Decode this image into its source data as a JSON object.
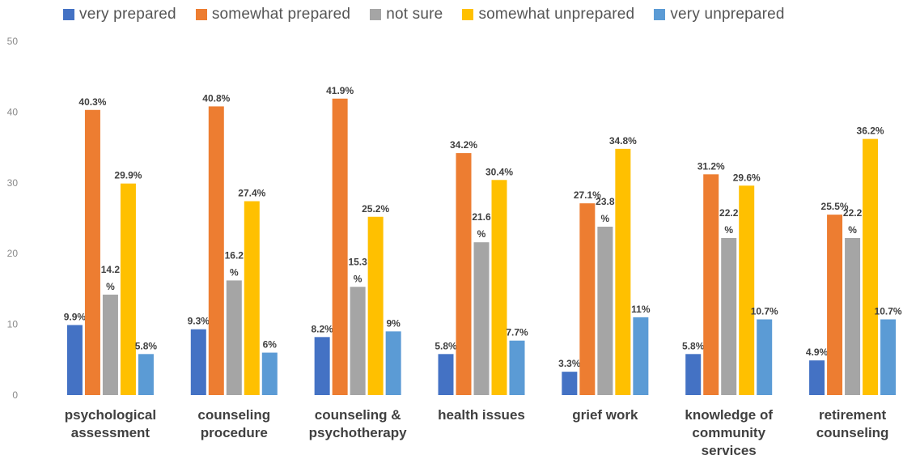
{
  "chart_data": {
    "type": "bar",
    "title": "",
    "xlabel": "",
    "ylabel": "",
    "ylim": [
      0,
      50
    ],
    "yticks": [
      "0",
      "10",
      "20",
      "30",
      "40",
      "50"
    ],
    "grid": false,
    "legend_position": "top",
    "categories": [
      [
        "psychological",
        "assessment"
      ],
      [
        "counseling",
        "procedure"
      ],
      [
        "counseling &",
        "psychotherapy"
      ],
      [
        "health issues"
      ],
      [
        "grief work"
      ],
      [
        "knowledge of",
        "community",
        "services"
      ],
      [
        "retirement",
        "counseling"
      ]
    ],
    "series": [
      {
        "name": "very prepared",
        "color": "#4472C4",
        "values": [
          9.9,
          9.3,
          8.2,
          5.8,
          3.3,
          5.8,
          4.9
        ],
        "labels": [
          [
            "9.9%"
          ],
          [
            "9.3%"
          ],
          [
            "8.2%"
          ],
          [
            "5.8%"
          ],
          [
            "3.3%"
          ],
          [
            "5.8%"
          ],
          [
            "4.9%"
          ]
        ]
      },
      {
        "name": "somewhat prepared",
        "color": "#ED7D31",
        "values": [
          40.3,
          40.8,
          41.9,
          34.2,
          27.1,
          31.2,
          25.5
        ],
        "labels": [
          [
            "40.3%"
          ],
          [
            "40.8%"
          ],
          [
            "41.9%"
          ],
          [
            "34.2%"
          ],
          [
            "27.1%"
          ],
          [
            "31.2%"
          ],
          [
            "25.5%"
          ]
        ]
      },
      {
        "name": "not sure",
        "color": "#A5A5A5",
        "values": [
          14.2,
          16.2,
          15.3,
          21.6,
          23.8,
          22.2,
          22.2
        ],
        "labels": [
          [
            "14.2",
            "%"
          ],
          [
            "16.2",
            "%"
          ],
          [
            "15.3",
            "%"
          ],
          [
            "21.6",
            "%"
          ],
          [
            "23.8",
            "%"
          ],
          [
            "22.2",
            "%"
          ],
          [
            "22.2",
            "%"
          ]
        ]
      },
      {
        "name": "somewhat unprepared",
        "color": "#FFC000",
        "values": [
          29.9,
          27.4,
          25.2,
          30.4,
          34.8,
          29.6,
          36.2
        ],
        "labels": [
          [
            "29.9%"
          ],
          [
            "27.4%"
          ],
          [
            "25.2%"
          ],
          [
            "30.4%"
          ],
          [
            "34.8%"
          ],
          [
            "29.6%"
          ],
          [
            "36.2%"
          ]
        ]
      },
      {
        "name": "very unprepared",
        "color": "#5B9BD5",
        "values": [
          5.8,
          6,
          9,
          7.7,
          11,
          10.7,
          10.7
        ],
        "labels": [
          [
            "5.8%"
          ],
          [
            "6%"
          ],
          [
            "9%"
          ],
          [
            "7.7%"
          ],
          [
            "11%"
          ],
          [
            "10.7%"
          ],
          [
            "10.7%"
          ]
        ]
      }
    ]
  }
}
